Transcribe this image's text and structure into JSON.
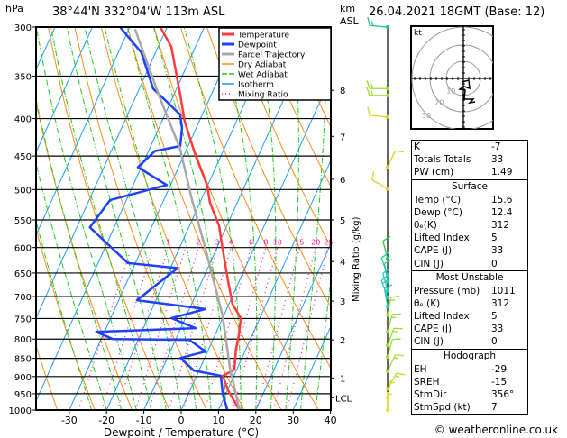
{
  "header": {
    "pressure_unit": "hPa",
    "location": "38°44'N 332°04'W 113m ASL",
    "km_label_1": "km",
    "km_label_2": "ASL",
    "datetime": "26.04.2021 18GMT (Base: 12)"
  },
  "chart_data": {
    "type": "skew-t log-p",
    "xlabel": "Dewpoint / Temperature (°C)",
    "x_ticks": [
      "-30",
      "-20",
      "-10",
      "0",
      "10",
      "20",
      "30",
      "40"
    ],
    "xlim": [
      -40,
      40
    ],
    "y_ticks": [
      "300",
      "350",
      "400",
      "450",
      "500",
      "550",
      "600",
      "650",
      "700",
      "750",
      "800",
      "850",
      "900",
      "950",
      "1000"
    ],
    "ylim": [
      1000,
      300
    ],
    "km_ticks": [
      {
        "label": "8",
        "p": 366
      },
      {
        "label": "7",
        "p": 423
      },
      {
        "label": "6",
        "p": 484
      },
      {
        "label": "5",
        "p": 550
      },
      {
        "label": "4",
        "p": 627
      },
      {
        "label": "3",
        "p": 710
      },
      {
        "label": "2",
        "p": 802
      },
      {
        "label": "1",
        "p": 904
      },
      {
        "label": "LCL",
        "p": 962
      }
    ],
    "mixing_ratio_label": "Mixing Ratio (g/kg)",
    "mixing_ratio_values": [
      "1",
      "2",
      "3",
      "4",
      "6",
      "8",
      "10",
      "15",
      "20",
      "25"
    ],
    "legend": [
      {
        "label": "Temperature",
        "color": "#ff3b3b"
      },
      {
        "label": "Dewpoint",
        "color": "#2040ff"
      },
      {
        "label": "Parcel Trajectory",
        "color": "#a8a8a8"
      },
      {
        "label": "Dry Adiabat",
        "color": "#ff8c1a"
      },
      {
        "label": "Wet Adiabat",
        "color": "#1ecc1e"
      },
      {
        "label": "Isotherm",
        "color": "#1e9bff"
      },
      {
        "label": "Mixing Ratio",
        "color": "#ff1493"
      }
    ],
    "legend_position": "top-right",
    "series": [
      {
        "name": "Temperature",
        "color": "#ff3b3b",
        "points": [
          [
            300,
            -51.8
          ],
          [
            319,
            -46.5
          ],
          [
            371,
            -38.3
          ],
          [
            404,
            -33.8
          ],
          [
            449,
            -26.9
          ],
          [
            493,
            -20.2
          ],
          [
            521,
            -17.3
          ],
          [
            560,
            -12.1
          ],
          [
            604,
            -8.2
          ],
          [
            664,
            -3.2
          ],
          [
            716,
            0.9
          ],
          [
            749,
            4.9
          ],
          [
            793,
            6.5
          ],
          [
            825,
            7.3
          ],
          [
            881,
            9.4
          ],
          [
            898,
            7.0
          ],
          [
            940,
            10.2
          ],
          [
            1000,
            15.6
          ]
        ]
      },
      {
        "name": "Dewpoint",
        "color": "#2040ff",
        "points": [
          [
            300,
            -62.6
          ],
          [
            325,
            -53.8
          ],
          [
            364,
            -46.3
          ],
          [
            395,
            -35.9
          ],
          [
            412,
            -33.8
          ],
          [
            436,
            -32.1
          ],
          [
            443,
            -38.3
          ],
          [
            466,
            -40.9
          ],
          [
            493,
            -31.0
          ],
          [
            517,
            -44.4
          ],
          [
            563,
            -46.5
          ],
          [
            630,
            -32.0
          ],
          [
            640,
            -18.1
          ],
          [
            708,
            -25.1
          ],
          [
            728,
            -5.7
          ],
          [
            749,
            -13.7
          ],
          [
            773,
            -6.0
          ],
          [
            782,
            -32.2
          ],
          [
            800,
            -26.9
          ],
          [
            802,
            -6.3
          ],
          [
            832,
            -0.5
          ],
          [
            849,
            -6.5
          ],
          [
            883,
            -1.4
          ],
          [
            898,
            6.5
          ],
          [
            951,
            9.2
          ],
          [
            1000,
            12.4
          ]
        ]
      },
      {
        "name": "Parcel Trajectory",
        "color": "#a8a8a8",
        "points": [
          [
            302,
            -58.3
          ],
          [
            374,
            -43.5
          ],
          [
            440,
            -31.8
          ],
          [
            517,
            -22.4
          ],
          [
            597,
            -13.5
          ],
          [
            743,
            -0.3
          ],
          [
            873,
            7.8
          ],
          [
            1000,
            15.6
          ]
        ]
      }
    ],
    "winds": [
      {
        "p": 300,
        "dir": 275,
        "kt": 15,
        "color": "#1fbf8f"
      },
      {
        "p": 364,
        "dir": 270,
        "kt": 15,
        "color": "#9be02a"
      },
      {
        "p": 372,
        "dir": 270,
        "kt": 15,
        "color": "#9be02a"
      },
      {
        "p": 398,
        "dir": 275,
        "kt": 10,
        "color": "#d6d620"
      },
      {
        "p": 466,
        "dir": 25,
        "kt": 10,
        "color": "#e0d020"
      },
      {
        "p": 499,
        "dir": 300,
        "kt": 10,
        "color": "#e0d020"
      },
      {
        "p": 621,
        "dir": 345,
        "kt": 10,
        "color": "#22cc44"
      },
      {
        "p": 654,
        "dir": 340,
        "kt": 10,
        "color": "#22ccaa"
      },
      {
        "p": 667,
        "dir": 350,
        "kt": 10,
        "color": "#22ccaa"
      },
      {
        "p": 687,
        "dir": 345,
        "kt": 10,
        "color": "#22ccbb"
      },
      {
        "p": 702,
        "dir": 340,
        "kt": 15,
        "color": "#22ccbb"
      },
      {
        "p": 722,
        "dir": 350,
        "kt": 10,
        "color": "#22ccaa"
      },
      {
        "p": 742,
        "dir": 10,
        "kt": 15,
        "color": "#99dd33"
      },
      {
        "p": 782,
        "dir": 15,
        "kt": 15,
        "color": "#99dd33"
      },
      {
        "p": 816,
        "dir": 20,
        "kt": 15,
        "color": "#99dd33"
      },
      {
        "p": 846,
        "dir": 15,
        "kt": 10,
        "color": "#99dd33"
      },
      {
        "p": 885,
        "dir": 25,
        "kt": 15,
        "color": "#aadd33"
      },
      {
        "p": 935,
        "dir": 30,
        "kt": 15,
        "color": "#bbdd33"
      },
      {
        "p": 962,
        "dir": 10,
        "kt": 5,
        "color": "#dddd22"
      },
      {
        "p": 1000,
        "dir": 0,
        "kt": 5,
        "color": "#eedd22"
      }
    ]
  },
  "hodograph": {
    "unit": "kt",
    "ring_labels": [
      "10",
      "20",
      "30"
    ]
  },
  "indices": {
    "top": [
      {
        "label": "K",
        "value": "-7"
      },
      {
        "label": "Totals Totals",
        "value": "33"
      },
      {
        "label": "PW (cm)",
        "value": "1.49"
      }
    ],
    "surface": {
      "title": "Surface",
      "rows": [
        {
          "label": "Temp (°C)",
          "value": "15.6"
        },
        {
          "label": "Dewp (°C)",
          "value": "12.4"
        },
        {
          "label": "θₑ(K)",
          "value": "312"
        },
        {
          "label": "Lifted Index",
          "value": "5"
        },
        {
          "label": "CAPE (J)",
          "value": "33"
        },
        {
          "label": "CIN (J)",
          "value": "0"
        }
      ]
    },
    "most_unstable": {
      "title": "Most Unstable",
      "rows": [
        {
          "label": "Pressure (mb)",
          "value": "1011"
        },
        {
          "label": "θₑ (K)",
          "value": "312"
        },
        {
          "label": "Lifted Index",
          "value": "5"
        },
        {
          "label": "CAPE (J)",
          "value": "33"
        },
        {
          "label": "CIN (J)",
          "value": "0"
        }
      ]
    },
    "hodograph": {
      "title": "Hodograph",
      "rows": [
        {
          "label": "EH",
          "value": "-29"
        },
        {
          "label": "SREH",
          "value": "-15"
        },
        {
          "label": "StmDir",
          "value": "356°"
        },
        {
          "label": "StmSpd (kt)",
          "value": "7"
        }
      ]
    }
  },
  "footer": "© weatheronline.co.uk"
}
